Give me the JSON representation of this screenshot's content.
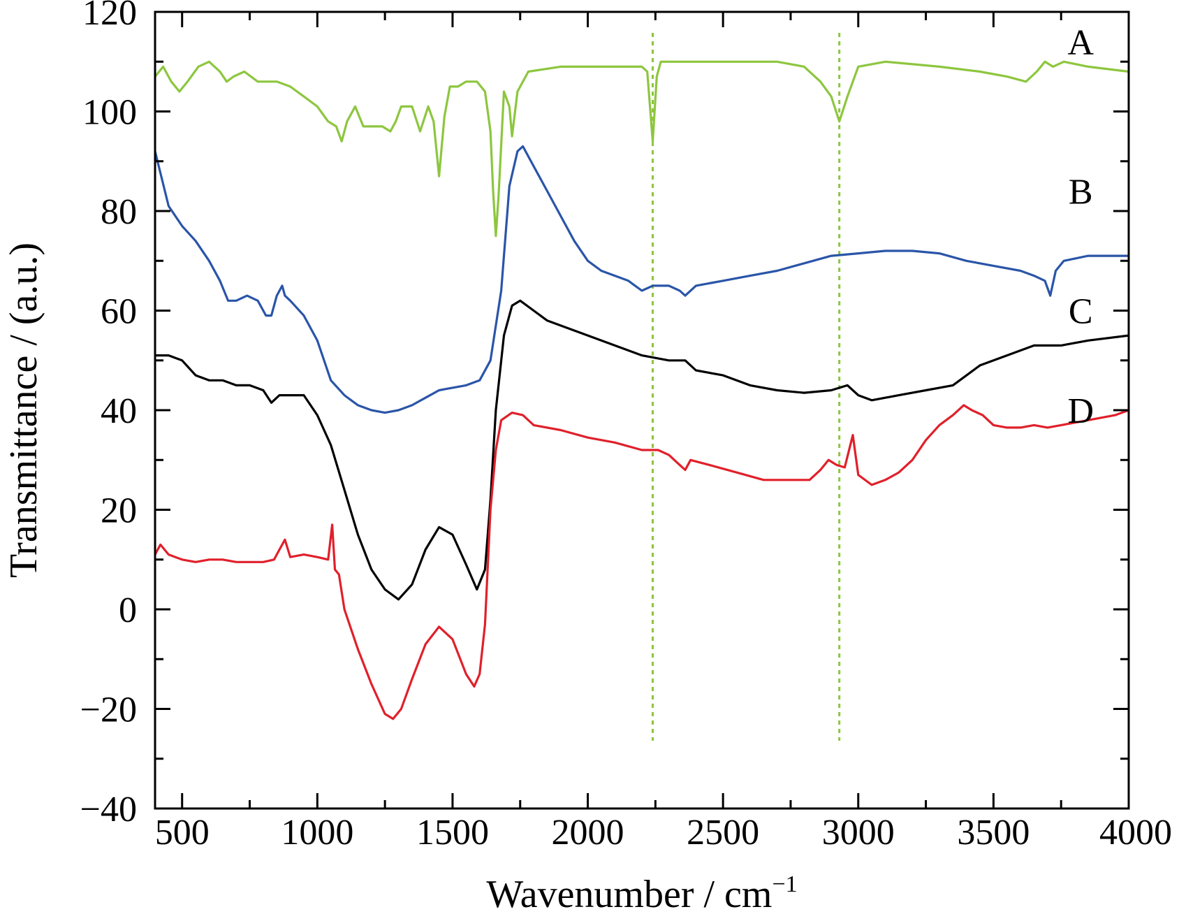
{
  "chart_data": {
    "type": "line",
    "xlabel": "Wavenumber / cm",
    "xlabel_superscript": "−1",
    "ylabel": "Transmittance / (a.u.)",
    "xlim": [
      400,
      4000
    ],
    "ylim": [
      -40,
      120
    ],
    "x_ticks": [
      500,
      1000,
      1500,
      2000,
      2500,
      3000,
      3500,
      4000
    ],
    "x_tick_labels": [
      "500",
      "1000",
      "1500",
      "2000",
      "2500",
      "3000",
      "3500",
      "4000"
    ],
    "y_ticks": [
      -40,
      -20,
      0,
      20,
      40,
      60,
      80,
      100,
      120
    ],
    "y_tick_labels": [
      "−40",
      "−20",
      "0",
      "20",
      "40",
      "60",
      "80",
      "100",
      "120"
    ],
    "grid": false,
    "reference_lines": [
      {
        "x": 2240,
        "color": "#8cc63f",
        "style": "dotted"
      },
      {
        "x": 2930,
        "color": "#8cc63f",
        "style": "dotted"
      }
    ],
    "series": [
      {
        "name": "A",
        "color": "#8dc63f",
        "label_pos": [
          3900,
          114
        ],
        "points": [
          [
            400,
            107
          ],
          [
            430,
            109
          ],
          [
            460,
            106
          ],
          [
            490,
            104
          ],
          [
            520,
            106
          ],
          [
            560,
            109
          ],
          [
            600,
            110
          ],
          [
            640,
            108
          ],
          [
            665,
            106
          ],
          [
            690,
            107
          ],
          [
            730,
            108
          ],
          [
            780,
            106
          ],
          [
            850,
            106
          ],
          [
            900,
            105
          ],
          [
            950,
            103
          ],
          [
            1000,
            101
          ],
          [
            1040,
            98
          ],
          [
            1070,
            97
          ],
          [
            1090,
            94
          ],
          [
            1110,
            98
          ],
          [
            1140,
            101
          ],
          [
            1170,
            97
          ],
          [
            1200,
            97
          ],
          [
            1240,
            97
          ],
          [
            1270,
            96
          ],
          [
            1290,
            98
          ],
          [
            1310,
            101
          ],
          [
            1350,
            101
          ],
          [
            1380,
            96
          ],
          [
            1410,
            101
          ],
          [
            1430,
            98
          ],
          [
            1450,
            87
          ],
          [
            1470,
            99
          ],
          [
            1490,
            105
          ],
          [
            1520,
            105
          ],
          [
            1550,
            106
          ],
          [
            1590,
            106
          ],
          [
            1620,
            104
          ],
          [
            1640,
            96
          ],
          [
            1650,
            84
          ],
          [
            1660,
            75
          ],
          [
            1670,
            83
          ],
          [
            1690,
            104
          ],
          [
            1710,
            101
          ],
          [
            1720,
            95
          ],
          [
            1740,
            104
          ],
          [
            1780,
            108
          ],
          [
            1900,
            109
          ],
          [
            2100,
            109
          ],
          [
            2200,
            109
          ],
          [
            2220,
            108
          ],
          [
            2240,
            94
          ],
          [
            2255,
            107
          ],
          [
            2270,
            110
          ],
          [
            2300,
            110
          ],
          [
            2500,
            110
          ],
          [
            2700,
            110
          ],
          [
            2800,
            109
          ],
          [
            2860,
            106
          ],
          [
            2900,
            103
          ],
          [
            2930,
            98
          ],
          [
            2960,
            103
          ],
          [
            3000,
            109
          ],
          [
            3100,
            110
          ],
          [
            3300,
            109
          ],
          [
            3450,
            108
          ],
          [
            3550,
            107
          ],
          [
            3620,
            106
          ],
          [
            3660,
            108
          ],
          [
            3690,
            110
          ],
          [
            3720,
            109
          ],
          [
            3760,
            110
          ],
          [
            3850,
            109
          ],
          [
            4000,
            108
          ]
        ]
      },
      {
        "name": "B",
        "color": "#2a55a8",
        "label_pos": [
          3900,
          84
        ],
        "points": [
          [
            400,
            92
          ],
          [
            450,
            81
          ],
          [
            500,
            77
          ],
          [
            550,
            74
          ],
          [
            600,
            70
          ],
          [
            640,
            66
          ],
          [
            670,
            62
          ],
          [
            700,
            62
          ],
          [
            740,
            63
          ],
          [
            780,
            62
          ],
          [
            810,
            59
          ],
          [
            830,
            59
          ],
          [
            850,
            63
          ],
          [
            870,
            65
          ],
          [
            880,
            63
          ],
          [
            900,
            62
          ],
          [
            950,
            59
          ],
          [
            1000,
            54
          ],
          [
            1050,
            46
          ],
          [
            1100,
            43
          ],
          [
            1150,
            41
          ],
          [
            1200,
            40
          ],
          [
            1250,
            39.5
          ],
          [
            1300,
            40
          ],
          [
            1350,
            41
          ],
          [
            1400,
            42.5
          ],
          [
            1450,
            44
          ],
          [
            1500,
            44.5
          ],
          [
            1550,
            45
          ],
          [
            1600,
            46
          ],
          [
            1640,
            50
          ],
          [
            1680,
            64
          ],
          [
            1710,
            85
          ],
          [
            1740,
            92
          ],
          [
            1760,
            93
          ],
          [
            1790,
            90
          ],
          [
            1850,
            84
          ],
          [
            1900,
            79
          ],
          [
            1950,
            74
          ],
          [
            2000,
            70
          ],
          [
            2050,
            68
          ],
          [
            2100,
            67
          ],
          [
            2150,
            66
          ],
          [
            2200,
            64
          ],
          [
            2240,
            65
          ],
          [
            2300,
            65
          ],
          [
            2340,
            64
          ],
          [
            2360,
            63
          ],
          [
            2400,
            65
          ],
          [
            2500,
            66
          ],
          [
            2600,
            67
          ],
          [
            2700,
            68
          ],
          [
            2800,
            69.5
          ],
          [
            2900,
            71
          ],
          [
            3000,
            71.5
          ],
          [
            3100,
            72
          ],
          [
            3200,
            72
          ],
          [
            3300,
            71.5
          ],
          [
            3400,
            70
          ],
          [
            3500,
            69
          ],
          [
            3600,
            68
          ],
          [
            3650,
            67
          ],
          [
            3690,
            66
          ],
          [
            3710,
            63
          ],
          [
            3730,
            68
          ],
          [
            3760,
            70
          ],
          [
            3850,
            71
          ],
          [
            4000,
            71
          ]
        ]
      },
      {
        "name": "C",
        "color": "#000000",
        "label_pos": [
          3900,
          60
        ],
        "points": [
          [
            400,
            51
          ],
          [
            450,
            51
          ],
          [
            500,
            50
          ],
          [
            550,
            47
          ],
          [
            600,
            46
          ],
          [
            650,
            46
          ],
          [
            700,
            45
          ],
          [
            750,
            45
          ],
          [
            800,
            44
          ],
          [
            830,
            41.5
          ],
          [
            860,
            43
          ],
          [
            900,
            43
          ],
          [
            950,
            43
          ],
          [
            1000,
            39
          ],
          [
            1050,
            33
          ],
          [
            1100,
            24
          ],
          [
            1150,
            15
          ],
          [
            1200,
            8
          ],
          [
            1250,
            4
          ],
          [
            1300,
            2
          ],
          [
            1350,
            5
          ],
          [
            1400,
            12
          ],
          [
            1450,
            16.5
          ],
          [
            1500,
            15
          ],
          [
            1550,
            9
          ],
          [
            1590,
            4
          ],
          [
            1620,
            8
          ],
          [
            1640,
            22
          ],
          [
            1660,
            40
          ],
          [
            1690,
            55
          ],
          [
            1720,
            61
          ],
          [
            1750,
            62
          ],
          [
            1800,
            60
          ],
          [
            1850,
            58
          ],
          [
            1900,
            57
          ],
          [
            2000,
            55
          ],
          [
            2100,
            53
          ],
          [
            2200,
            51
          ],
          [
            2300,
            50
          ],
          [
            2360,
            50
          ],
          [
            2400,
            48
          ],
          [
            2500,
            47
          ],
          [
            2600,
            45
          ],
          [
            2700,
            44
          ],
          [
            2800,
            43.5
          ],
          [
            2900,
            44
          ],
          [
            2960,
            45
          ],
          [
            3000,
            43
          ],
          [
            3050,
            42
          ],
          [
            3150,
            43
          ],
          [
            3250,
            44
          ],
          [
            3350,
            45
          ],
          [
            3450,
            49
          ],
          [
            3550,
            51
          ],
          [
            3650,
            53
          ],
          [
            3750,
            53
          ],
          [
            3850,
            54
          ],
          [
            4000,
            55
          ]
        ]
      },
      {
        "name": "D",
        "color": "#e0202a",
        "label_pos": [
          3900,
          40
        ],
        "points": [
          [
            400,
            11
          ],
          [
            420,
            13
          ],
          [
            450,
            11
          ],
          [
            500,
            10
          ],
          [
            550,
            9.5
          ],
          [
            600,
            10
          ],
          [
            650,
            10
          ],
          [
            700,
            9.5
          ],
          [
            750,
            9.5
          ],
          [
            800,
            9.5
          ],
          [
            840,
            10
          ],
          [
            860,
            12
          ],
          [
            880,
            14
          ],
          [
            900,
            10.5
          ],
          [
            950,
            11
          ],
          [
            1000,
            10.5
          ],
          [
            1040,
            10
          ],
          [
            1055,
            17
          ],
          [
            1065,
            8
          ],
          [
            1080,
            7
          ],
          [
            1100,
            0
          ],
          [
            1150,
            -8
          ],
          [
            1200,
            -15
          ],
          [
            1250,
            -21
          ],
          [
            1280,
            -22
          ],
          [
            1310,
            -20
          ],
          [
            1350,
            -14
          ],
          [
            1400,
            -7
          ],
          [
            1450,
            -3.5
          ],
          [
            1500,
            -6
          ],
          [
            1550,
            -13
          ],
          [
            1580,
            -15.5
          ],
          [
            1600,
            -13
          ],
          [
            1620,
            -3
          ],
          [
            1640,
            20
          ],
          [
            1660,
            32
          ],
          [
            1680,
            38
          ],
          [
            1720,
            39.5
          ],
          [
            1760,
            39
          ],
          [
            1800,
            37
          ],
          [
            1900,
            36
          ],
          [
            2000,
            34.5
          ],
          [
            2100,
            33.5
          ],
          [
            2200,
            32
          ],
          [
            2260,
            32
          ],
          [
            2300,
            31
          ],
          [
            2340,
            29
          ],
          [
            2360,
            28
          ],
          [
            2380,
            30
          ],
          [
            2450,
            29
          ],
          [
            2550,
            27.5
          ],
          [
            2650,
            26
          ],
          [
            2750,
            26
          ],
          [
            2820,
            26
          ],
          [
            2860,
            28
          ],
          [
            2890,
            30
          ],
          [
            2920,
            29
          ],
          [
            2950,
            28.5
          ],
          [
            2980,
            35
          ],
          [
            3000,
            27
          ],
          [
            3050,
            25
          ],
          [
            3100,
            26
          ],
          [
            3150,
            27.5
          ],
          [
            3200,
            30
          ],
          [
            3250,
            34
          ],
          [
            3300,
            37
          ],
          [
            3350,
            39
          ],
          [
            3390,
            41
          ],
          [
            3420,
            40
          ],
          [
            3460,
            39
          ],
          [
            3500,
            37
          ],
          [
            3550,
            36.5
          ],
          [
            3600,
            36.5
          ],
          [
            3650,
            37
          ],
          [
            3700,
            36.5
          ],
          [
            3750,
            37
          ],
          [
            3850,
            38
          ],
          [
            3950,
            39
          ],
          [
            4000,
            40
          ]
        ]
      }
    ]
  }
}
